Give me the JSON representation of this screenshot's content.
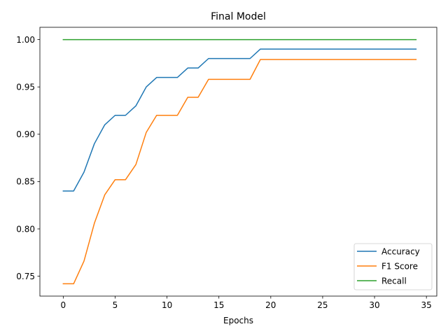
{
  "chart_data": {
    "type": "line",
    "title": "Final Model",
    "xlabel": "Epochs",
    "ylabel": "",
    "xlim": [
      -2.25,
      36.0
    ],
    "ylim": [
      0.729,
      1.013
    ],
    "xticks": [
      0,
      5,
      10,
      15,
      20,
      25,
      30,
      35
    ],
    "yticks": [
      0.75,
      0.8,
      0.85,
      0.9,
      0.95,
      1.0
    ],
    "ytick_labels": [
      "0.75",
      "0.80",
      "0.85",
      "0.90",
      "0.95",
      "1.00"
    ],
    "grid": false,
    "legend_position": "lower-right",
    "x": [
      0,
      1,
      2,
      3,
      4,
      5,
      6,
      7,
      8,
      9,
      10,
      11,
      12,
      13,
      14,
      15,
      16,
      17,
      18,
      19,
      20,
      21,
      22,
      23,
      24,
      25,
      26,
      27,
      28,
      29,
      30,
      31,
      32,
      33,
      34
    ],
    "series": [
      {
        "name": "Accuracy",
        "color": "#1f77b4",
        "values": [
          0.84,
          0.84,
          0.86,
          0.89,
          0.91,
          0.92,
          0.92,
          0.93,
          0.95,
          0.96,
          0.96,
          0.96,
          0.97,
          0.97,
          0.98,
          0.98,
          0.98,
          0.98,
          0.98,
          0.99,
          0.99,
          0.99,
          0.99,
          0.99,
          0.99,
          0.99,
          0.99,
          0.99,
          0.99,
          0.99,
          0.99,
          0.99,
          0.99,
          0.99,
          0.99
        ]
      },
      {
        "name": "F1 Score",
        "color": "#ff7f0e",
        "values": [
          0.742,
          0.742,
          0.766,
          0.806,
          0.836,
          0.852,
          0.852,
          0.868,
          0.902,
          0.92,
          0.92,
          0.92,
          0.939,
          0.939,
          0.958,
          0.958,
          0.958,
          0.958,
          0.958,
          0.979,
          0.979,
          0.979,
          0.979,
          0.979,
          0.979,
          0.979,
          0.979,
          0.979,
          0.979,
          0.979,
          0.979,
          0.979,
          0.979,
          0.979,
          0.979
        ]
      },
      {
        "name": "Recall",
        "color": "#2ca02c",
        "values": [
          1.0,
          1.0,
          1.0,
          1.0,
          1.0,
          1.0,
          1.0,
          1.0,
          1.0,
          1.0,
          1.0,
          1.0,
          1.0,
          1.0,
          1.0,
          1.0,
          1.0,
          1.0,
          1.0,
          1.0,
          1.0,
          1.0,
          1.0,
          1.0,
          1.0,
          1.0,
          1.0,
          1.0,
          1.0,
          1.0,
          1.0,
          1.0,
          1.0,
          1.0,
          1.0
        ]
      }
    ]
  }
}
